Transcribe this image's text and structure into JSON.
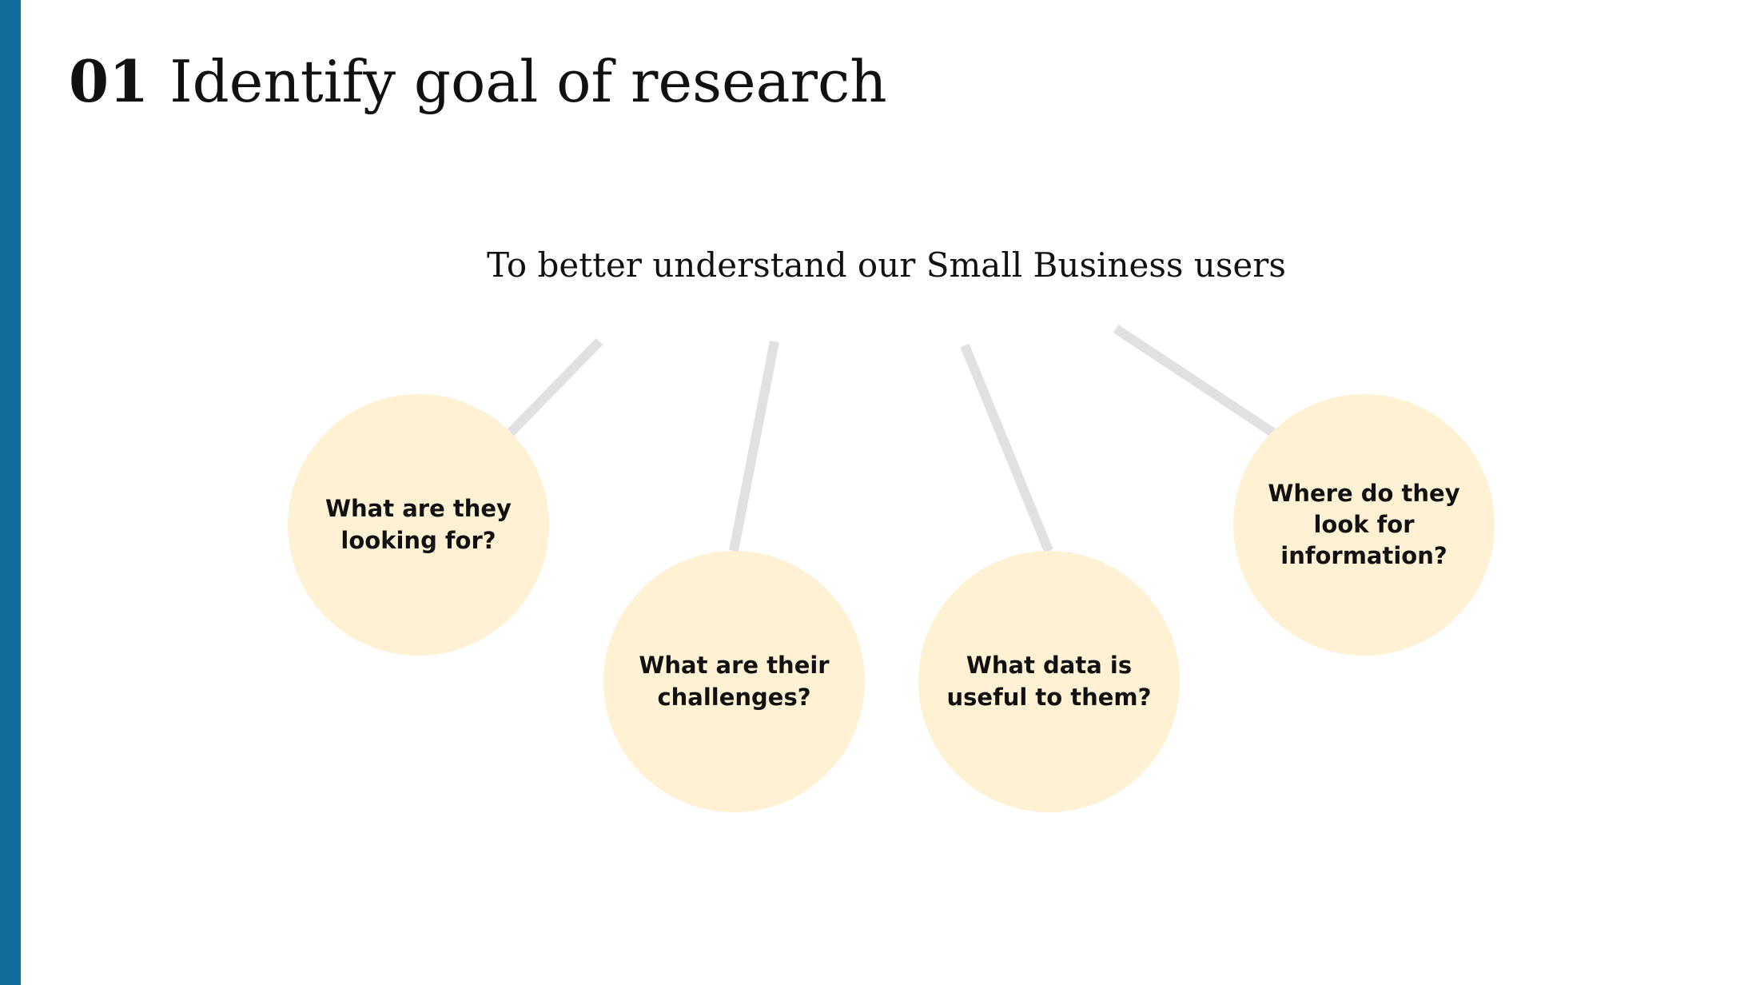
{
  "slide": {
    "number": "01",
    "title": "Identify goal of research",
    "goal": "To better understand our Small Business users"
  },
  "questions": [
    "What are they looking for?",
    "What are their challenges?",
    "What data is useful to them?",
    "Where do they look for information?"
  ],
  "colors": {
    "accent_bar": "#136b9c",
    "bubble_fill": "#fff1d4",
    "connector": "#e1e1e1",
    "text": "#111111"
  }
}
